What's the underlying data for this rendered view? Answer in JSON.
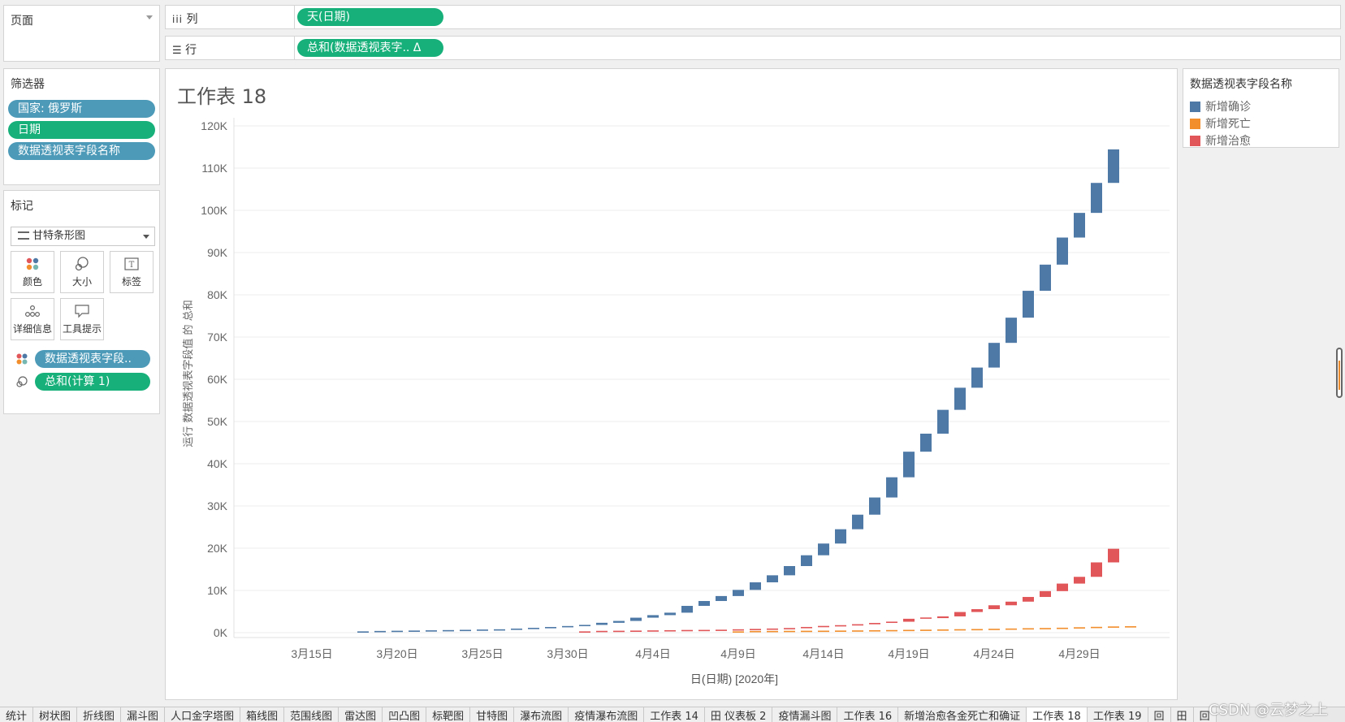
{
  "pages_panel": {
    "title": "页面"
  },
  "filters_panel": {
    "title": "筛选器",
    "items": [
      "国家: 俄罗斯",
      "日期",
      "数据透视表字段名称"
    ]
  },
  "marks_panel": {
    "title": "标记",
    "mark_type": "甘特条形图",
    "buttons": [
      "颜色",
      "大小",
      "标签",
      "详细信息",
      "工具提示"
    ],
    "fields": [
      "数据透视表字段..",
      "总和(计算 1)"
    ]
  },
  "shelves": {
    "columns": {
      "label": "列",
      "pill": "天(日期)"
    },
    "rows": {
      "label": "行",
      "pill": "总和(数据透视表字.. Δ"
    }
  },
  "sheet": {
    "title": "工作表 18"
  },
  "legend": {
    "title": "数据透视表字段名称",
    "items": [
      {
        "label": "新增确诊",
        "color": "#4e79a7"
      },
      {
        "label": "新增死亡",
        "color": "#f28e2b"
      },
      {
        "label": "新增治愈",
        "color": "#e15759"
      }
    ]
  },
  "chart_data": {
    "type": "bar",
    "subtype": "gantt-running-total",
    "xlabel": "日(日期) [2020年]",
    "ylabel": "运行 数据透视表字段值 的 总和",
    "x_ticks": [
      "3月15日",
      "3月20日",
      "3月25日",
      "3月30日",
      "4月4日",
      "4月9日",
      "4月14日",
      "4月19日",
      "4月24日",
      "4月29日"
    ],
    "y_ticks": [
      "0K",
      "10K",
      "20K",
      "30K",
      "40K",
      "50K",
      "60K",
      "70K",
      "80K",
      "90K",
      "100K",
      "110K",
      "120K"
    ],
    "ylim": [
      0,
      120000
    ],
    "grid": true,
    "series": [
      {
        "name": "新增确诊",
        "color": "#4e79a7",
        "start_date": "3月18日",
        "running_totals": [
          100,
          147,
          199,
          253,
          306,
          367,
          438,
          495,
          658,
          840,
          1036,
          1264,
          1534,
          1836,
          2337,
          2777,
          3548,
          4149,
          4731,
          6343,
          7497,
          8672,
          10131,
          11917,
          13584,
          15770,
          18328,
          21102,
          24490,
          27938,
          32008,
          36793,
          42853,
          47121,
          52763,
          57999,
          62773,
          68622,
          74588,
          80949,
          87147,
          93558,
          99399,
          106498,
          114431
        ]
      },
      {
        "name": "新增死亡",
        "color": "#f28e2b",
        "start_date": "4月9日",
        "running_totals": [
          94,
          106,
          130,
          148,
          170,
          198,
          232,
          273,
          313,
          361,
          405,
          456,
          513,
          555,
          615,
          681,
          747,
          794,
          867,
          972,
          1073,
          1169,
          1222,
          1280
        ]
      },
      {
        "name": "新增治愈",
        "color": "#e15759",
        "start_date": "3月31日",
        "running_totals": [
          121,
          150,
          190,
          235,
          282,
          333,
          355,
          398,
          494,
          580,
          673,
          794,
          1045,
          1291,
          1470,
          1694,
          1986,
          2304,
          2590,
          3291,
          3446,
          3851,
          4891,
          5568,
          6486,
          7346,
          8456,
          9836,
          11619,
          13220,
          16639,
          19865
        ]
      }
    ]
  },
  "tabs": [
    "统计",
    "树状图",
    "折线图",
    "漏斗图",
    "人口金字塔图",
    "箱线图",
    "范围线图",
    "雷达图",
    "凹凸图",
    "标靶图",
    "甘特图",
    "瀑布流图",
    "疫情瀑布流图",
    "工作表 14",
    "田 仪表板 2",
    "疫情漏斗图",
    "工作表 16",
    "新增治愈各金死亡和确证",
    "工作表 18",
    "工作表 19",
    "回",
    "田",
    "回"
  ],
  "active_tab": "工作表 18",
  "watermark": "CSDN @云梦之上"
}
